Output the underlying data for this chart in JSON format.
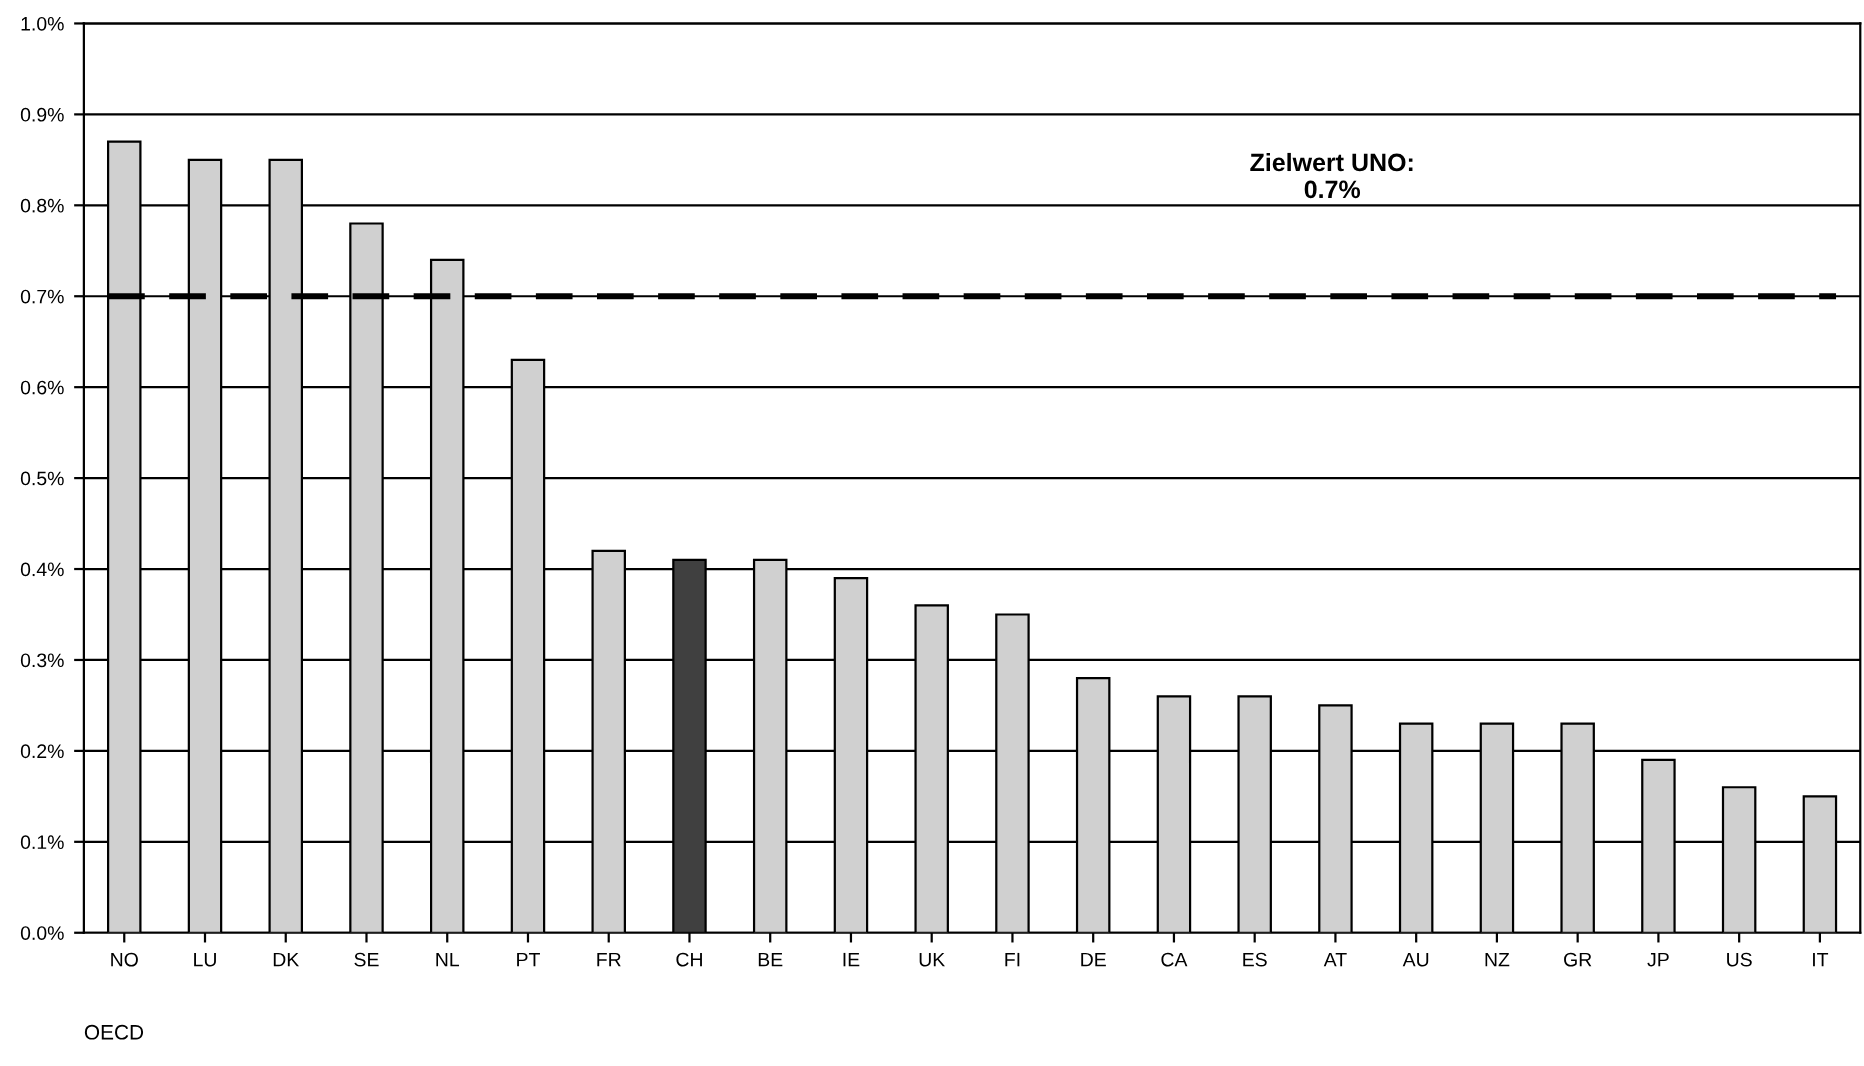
{
  "chart_data": {
    "type": "bar",
    "categories": [
      "NO",
      "LU",
      "DK",
      "SE",
      "NL",
      "PT",
      "FR",
      "CH",
      "BE",
      "IE",
      "UK",
      "FI",
      "DE",
      "CA",
      "ES",
      "AT",
      "AU",
      "NZ",
      "GR",
      "JP",
      "US",
      "IT"
    ],
    "values": [
      0.87,
      0.85,
      0.85,
      0.78,
      0.74,
      0.63,
      0.42,
      0.41,
      0.41,
      0.39,
      0.36,
      0.35,
      0.28,
      0.26,
      0.26,
      0.25,
      0.23,
      0.23,
      0.23,
      0.19,
      0.16,
      0.15
    ],
    "colors": [
      "#d0d0d0",
      "#d0d0d0",
      "#d0d0d0",
      "#d0d0d0",
      "#d0d0d0",
      "#d0d0d0",
      "#d0d0d0",
      "#404040",
      "#d0d0d0",
      "#d0d0d0",
      "#d0d0d0",
      "#d0d0d0",
      "#d0d0d0",
      "#d0d0d0",
      "#d0d0d0",
      "#d0d0d0",
      "#d0d0d0",
      "#d0d0d0",
      "#d0d0d0",
      "#d0d0d0",
      "#d0d0d0",
      "#d0d0d0"
    ],
    "ylim": [
      0,
      1.0
    ],
    "yticks": [
      {
        "value": 0,
        "label": "0.0%"
      },
      {
        "value": 0.1,
        "label": "0.1%"
      },
      {
        "value": 0.2,
        "label": "0.2%"
      },
      {
        "value": 0.3,
        "label": "0.3%"
      },
      {
        "value": 0.4,
        "label": "0.4%"
      },
      {
        "value": 0.5,
        "label": "0.5%"
      },
      {
        "value": 0.6,
        "label": "0.6%"
      },
      {
        "value": 0.7,
        "label": "0.7%"
      },
      {
        "value": 0.8,
        "label": "0.8%"
      },
      {
        "value": 0.9,
        "label": "0.9%"
      },
      {
        "value": 1.0,
        "label": "1.0%"
      }
    ],
    "grid": "y",
    "legend": false,
    "ref_lines": [
      {
        "axis": "y",
        "value": 0.7,
        "label": "Zielwert UNO:\n0.7%",
        "color": "#000000",
        "line_style": "dashed"
      }
    ],
    "annotations": [
      "OECD"
    ]
  }
}
